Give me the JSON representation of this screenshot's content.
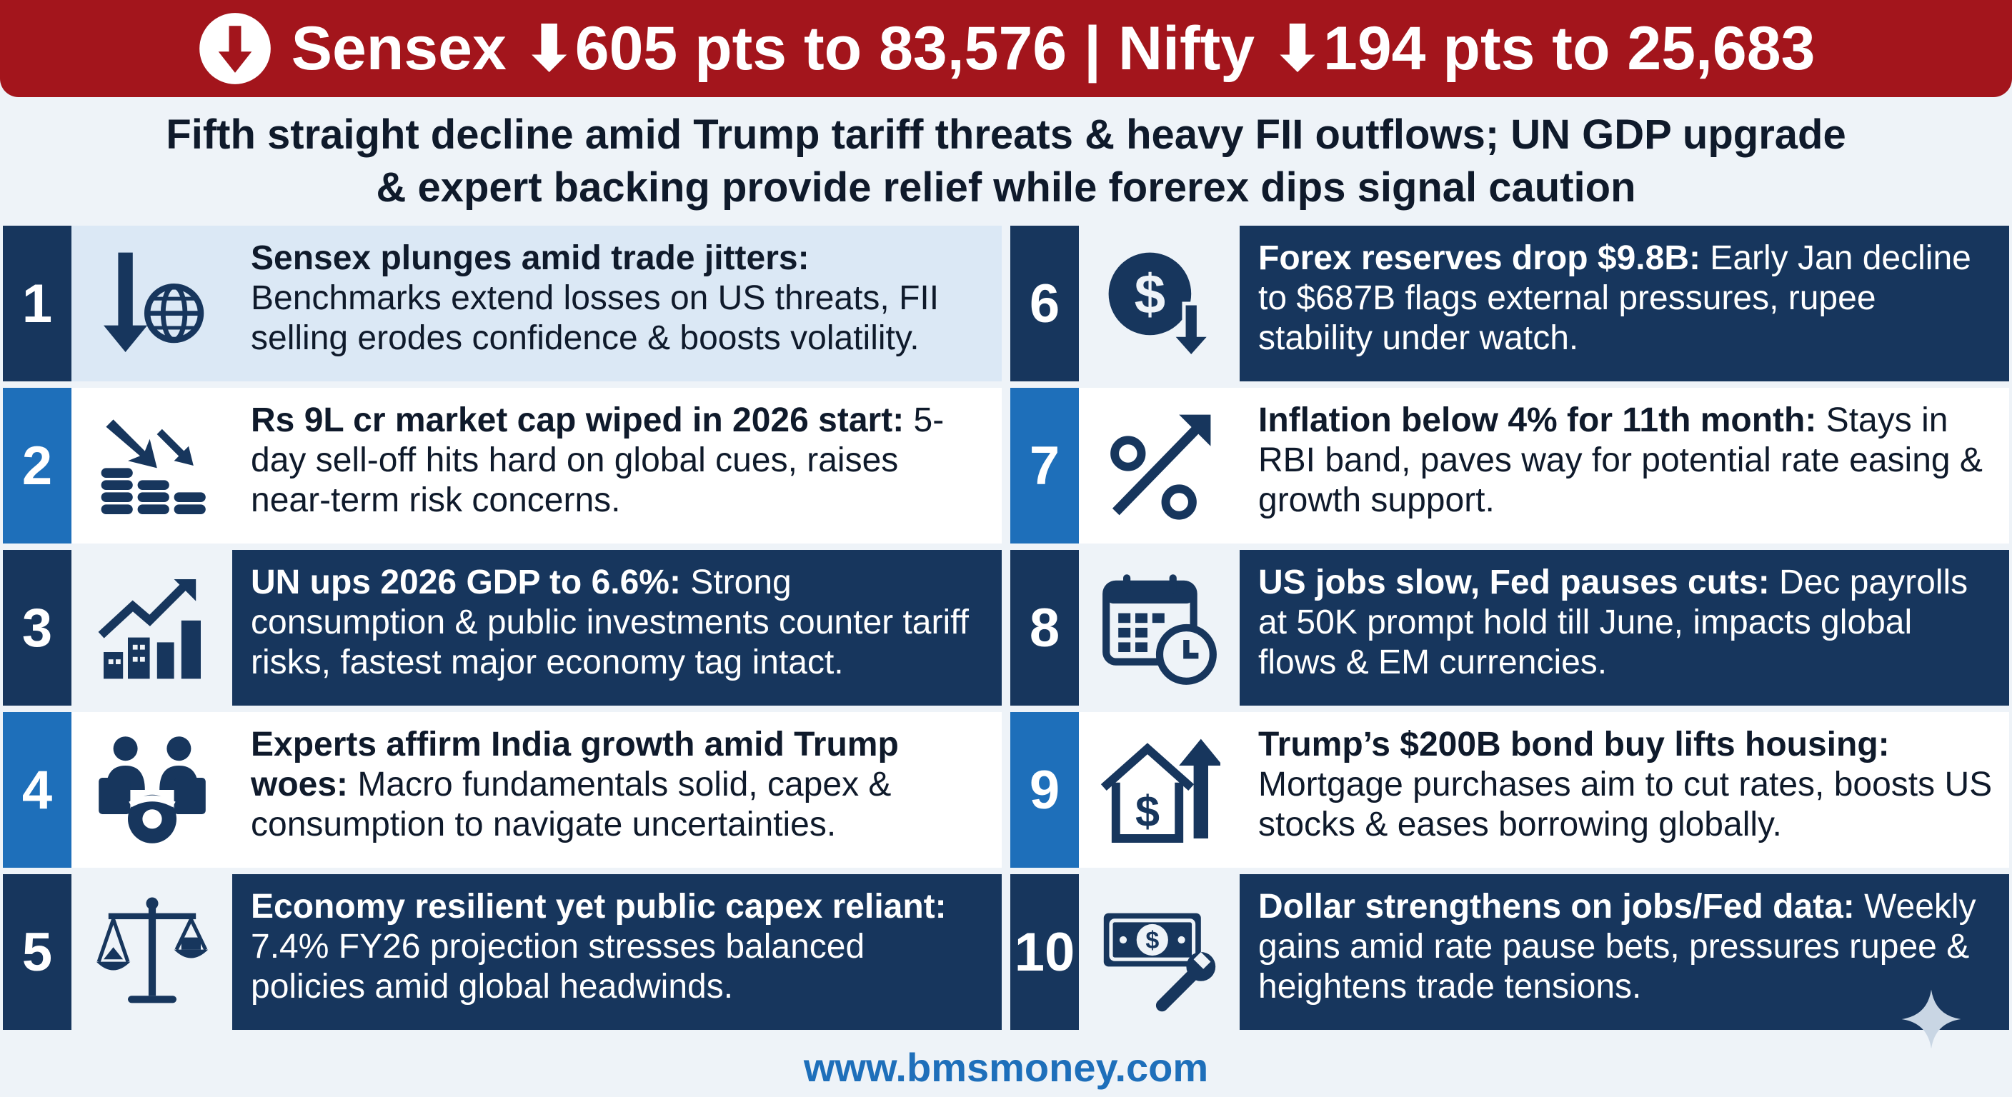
{
  "header": {
    "title": "Sensex ⬇605 pts to 83,576 | Nifty ⬇194 pts to 25,683",
    "accent": "#a3151c"
  },
  "subtitle": {
    "line1": "Fifth straight decline amid Trump tariff threats & heavy FII outflows; UN GDP upgrade",
    "line2": "& expert backing provide relief while forerex dips signal caution"
  },
  "items": [
    {
      "num": "1",
      "icon": "chart-down-globe-icon",
      "title": "Sensex plunges amid trade jitters:",
      "body": " Benchmarks extend losses on US threats, FII selling erodes confidence & boosts volatility."
    },
    {
      "num": "2",
      "icon": "coins-down-arrow-icon",
      "title": "Rs 9L cr market cap wiped in 2026 start:",
      "body": " 5-day sell-off hits hard on global cues, raises near-term risk concerns."
    },
    {
      "num": "3",
      "icon": "growth-chart-city-icon",
      "title": "UN ups 2026 GDP to 6.6%:",
      "body": " Strong consumption & public investments counter tariff risks, fastest major economy tag intact."
    },
    {
      "num": "4",
      "icon": "handshake-gear-icon",
      "title": "Experts affirm India growth amid Trump woes:",
      "body": " Macro fundamentals solid, capex & consumption to navigate uncertainties."
    },
    {
      "num": "5",
      "icon": "balance-scale-icon",
      "title": "Economy resilient yet public capex reliant:",
      "body": " 7.4% FY26 projection stresses balanced policies amid global headwinds."
    },
    {
      "num": "6",
      "icon": "dollar-down-arrow-icon",
      "title": "Forex reserves drop $9.8B:",
      "body": " Early Jan decline to $687B flags external pressures, rupee stability under watch."
    },
    {
      "num": "7",
      "icon": "percent-up-arrow-icon",
      "title": "Inflation below 4% for 11th month:",
      "body": " Stays in RBI band, paves way for potential rate easing & growth support."
    },
    {
      "num": "8",
      "icon": "calendar-clock-icon",
      "title": "US jobs slow, Fed pauses cuts:",
      "body": " Dec payrolls at 50K prompt hold till June, impacts global flows & EM currencies."
    },
    {
      "num": "9",
      "icon": "house-dollar-up-icon",
      "title": "Trump’s $200B bond buy lifts housing:",
      "body": " Mortgage purchases aim to cut rates, boosts US stocks & eases borrowing globally."
    },
    {
      "num": "10",
      "icon": "banknote-wrench-icon",
      "title": "Dollar strengthens on jobs/Fed data:",
      "body": " Weekly gains amid rate pause bets, pressures rupee & heightens trade tensions."
    }
  ],
  "footer": {
    "url": "www.bmsmoney.com"
  },
  "colors": {
    "navy": "#17365d",
    "blue": "#1e6fba",
    "pale": "#dbe8f5",
    "red": "#a3151c"
  }
}
